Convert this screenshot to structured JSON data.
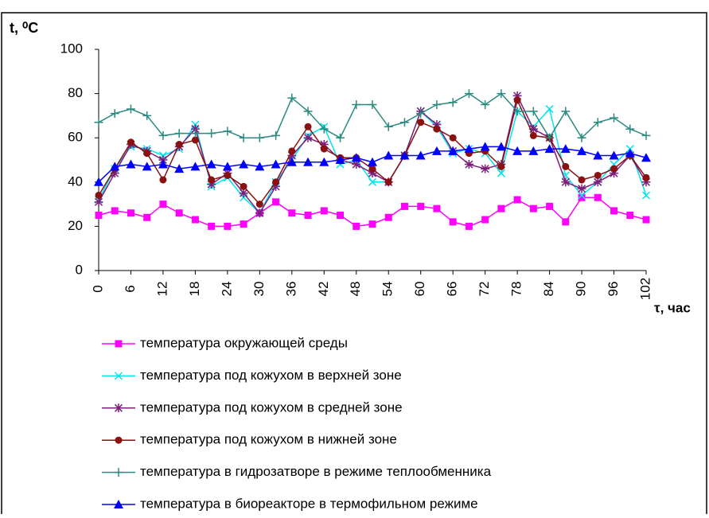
{
  "chart_data": {
    "type": "line",
    "y_label": "t, ⁰C",
    "x_label": "τ, час",
    "x": [
      0,
      3,
      6,
      9,
      12,
      15,
      18,
      21,
      24,
      27,
      30,
      33,
      36,
      39,
      42,
      45,
      48,
      51,
      54,
      57,
      60,
      63,
      66,
      69,
      72,
      75,
      78,
      81,
      84,
      87,
      90,
      93,
      96,
      99,
      102
    ],
    "xlim": [
      0,
      102
    ],
    "xticks": [
      0,
      6,
      12,
      18,
      24,
      30,
      36,
      42,
      48,
      54,
      60,
      66,
      72,
      78,
      84,
      90,
      96,
      102
    ],
    "ylim": [
      0,
      100
    ],
    "yticks": [
      0,
      20,
      40,
      60,
      80,
      100
    ],
    "series": [
      {
        "name": "температура окружающей среды",
        "color": "#ff00ff",
        "marker": "square",
        "values": [
          25,
          27,
          26,
          24,
          30,
          26,
          23,
          20,
          20,
          21,
          26,
          31,
          26,
          25,
          27,
          25,
          20,
          21,
          24,
          29,
          29,
          28,
          22,
          20,
          23,
          28,
          32,
          28,
          29,
          22,
          33,
          33,
          27,
          25,
          23
        ]
      },
      {
        "name": "температура под кожухом в верхней зоне",
        "color": "#00e5ee",
        "marker": "x",
        "values": [
          32,
          46,
          56,
          55,
          52,
          55,
          66,
          38,
          42,
          33,
          26,
          40,
          50,
          61,
          65,
          48,
          50,
          40,
          40,
          52,
          72,
          65,
          53,
          55,
          53,
          44,
          72,
          65,
          73,
          43,
          34,
          40,
          48,
          55,
          34
        ]
      },
      {
        "name": "температура под кожухом в средней зоне",
        "color": "#7b1f7b",
        "marker": "asterisk",
        "values": [
          31,
          44,
          57,
          54,
          50,
          56,
          64,
          39,
          44,
          35,
          26,
          38,
          52,
          60,
          57,
          50,
          48,
          44,
          40,
          52,
          72,
          66,
          54,
          48,
          46,
          48,
          79,
          64,
          60,
          40,
          37,
          40,
          44,
          52,
          40
        ]
      },
      {
        "name": "температура под кожухом в нижней зоне",
        "color": "#8b1010",
        "marker": "circle",
        "values": [
          34,
          46,
          58,
          53,
          41,
          57,
          59,
          41,
          43,
          38,
          30,
          40,
          54,
          65,
          55,
          51,
          51,
          46,
          40,
          52,
          67,
          64,
          60,
          53,
          54,
          47,
          77,
          61,
          60,
          47,
          41,
          43,
          46,
          52,
          42
        ]
      },
      {
        "name": "температура в гидрозатворе в режиме теплообменника",
        "color": "#2a8a80",
        "marker": "plus",
        "values": [
          67,
          71,
          73,
          70,
          61,
          62,
          62,
          62,
          63,
          60,
          60,
          61,
          78,
          72,
          64,
          60,
          75,
          75,
          65,
          67,
          71,
          75,
          76,
          80,
          75,
          80,
          72,
          72,
          60,
          72,
          60,
          67,
          69,
          64,
          61
        ]
      },
      {
        "name": "температура в биореакторе в термофильном режиме",
        "color": "#0000ff",
        "marker": "triangle",
        "values": [
          40,
          47,
          48,
          47,
          48,
          46,
          47,
          48,
          47,
          48,
          47,
          48,
          49,
          49,
          49,
          50,
          51,
          49,
          52,
          52,
          52,
          54,
          54,
          55,
          56,
          56,
          54,
          54,
          55,
          55,
          54,
          52,
          52,
          53,
          51
        ]
      }
    ]
  }
}
